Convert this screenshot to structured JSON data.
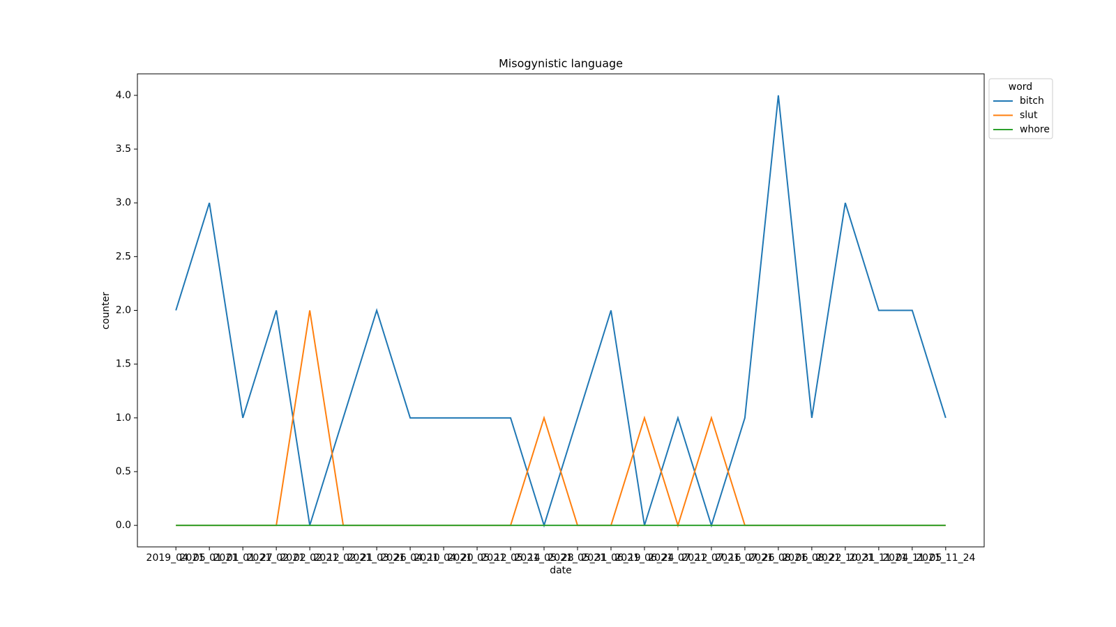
{
  "chart_data": {
    "type": "line",
    "title": "Misogynistic language",
    "xlabel": "date",
    "ylabel": "counter",
    "categories": [
      "2019_04_05",
      "2021_01_01",
      "2021_01_27",
      "2021_02_02",
      "2021_02_12",
      "2021_02_21",
      "2021_03_26",
      "2021_04_10",
      "2021_04_20",
      "2021_05_12",
      "2021_05_14",
      "2021_05_28",
      "2021_05_31",
      "2021_06_19",
      "2021_06_24",
      "2021_07_12",
      "2021_07_16",
      "2021_07_26",
      "2021_08_06",
      "2021_08_22",
      "2021_10_31",
      "2021_11_04",
      "2021_11_05",
      "2021_11_24"
    ],
    "series": [
      {
        "name": "bitch",
        "color": "#1f77b4",
        "values": [
          2,
          3,
          1,
          2,
          0,
          1,
          2,
          1,
          1,
          1,
          1,
          0,
          1,
          2,
          0,
          1,
          0,
          1,
          4,
          1,
          3,
          2,
          2,
          1
        ]
      },
      {
        "name": "slut",
        "color": "#ff7f0e",
        "values": [
          0,
          0,
          0,
          0,
          2,
          0,
          0,
          0,
          0,
          0,
          0,
          1,
          0,
          0,
          1,
          0,
          1,
          0,
          0,
          0,
          0,
          0,
          0,
          0
        ]
      },
      {
        "name": "whore",
        "color": "#2ca02c",
        "values": [
          0,
          0,
          0,
          0,
          0,
          0,
          0,
          0,
          0,
          0,
          0,
          0,
          0,
          0,
          0,
          0,
          0,
          0,
          0,
          0,
          0,
          0,
          0,
          0
        ]
      }
    ],
    "legend_title": "word",
    "legend": "outside upper right",
    "ylim": [
      -0.2,
      4.2
    ],
    "yticks": [
      {
        "value": 0,
        "label": "0.0"
      },
      {
        "value": 0.5,
        "label": "0.5"
      },
      {
        "value": 1,
        "label": "1.0"
      },
      {
        "value": 1.5,
        "label": "1.5"
      },
      {
        "value": 2,
        "label": "2.0"
      },
      {
        "value": 2.5,
        "label": "2.5"
      },
      {
        "value": 3,
        "label": "3.0"
      },
      {
        "value": 3.5,
        "label": "3.5"
      },
      {
        "value": 4,
        "label": "4.0"
      }
    ],
    "grid": false
  }
}
